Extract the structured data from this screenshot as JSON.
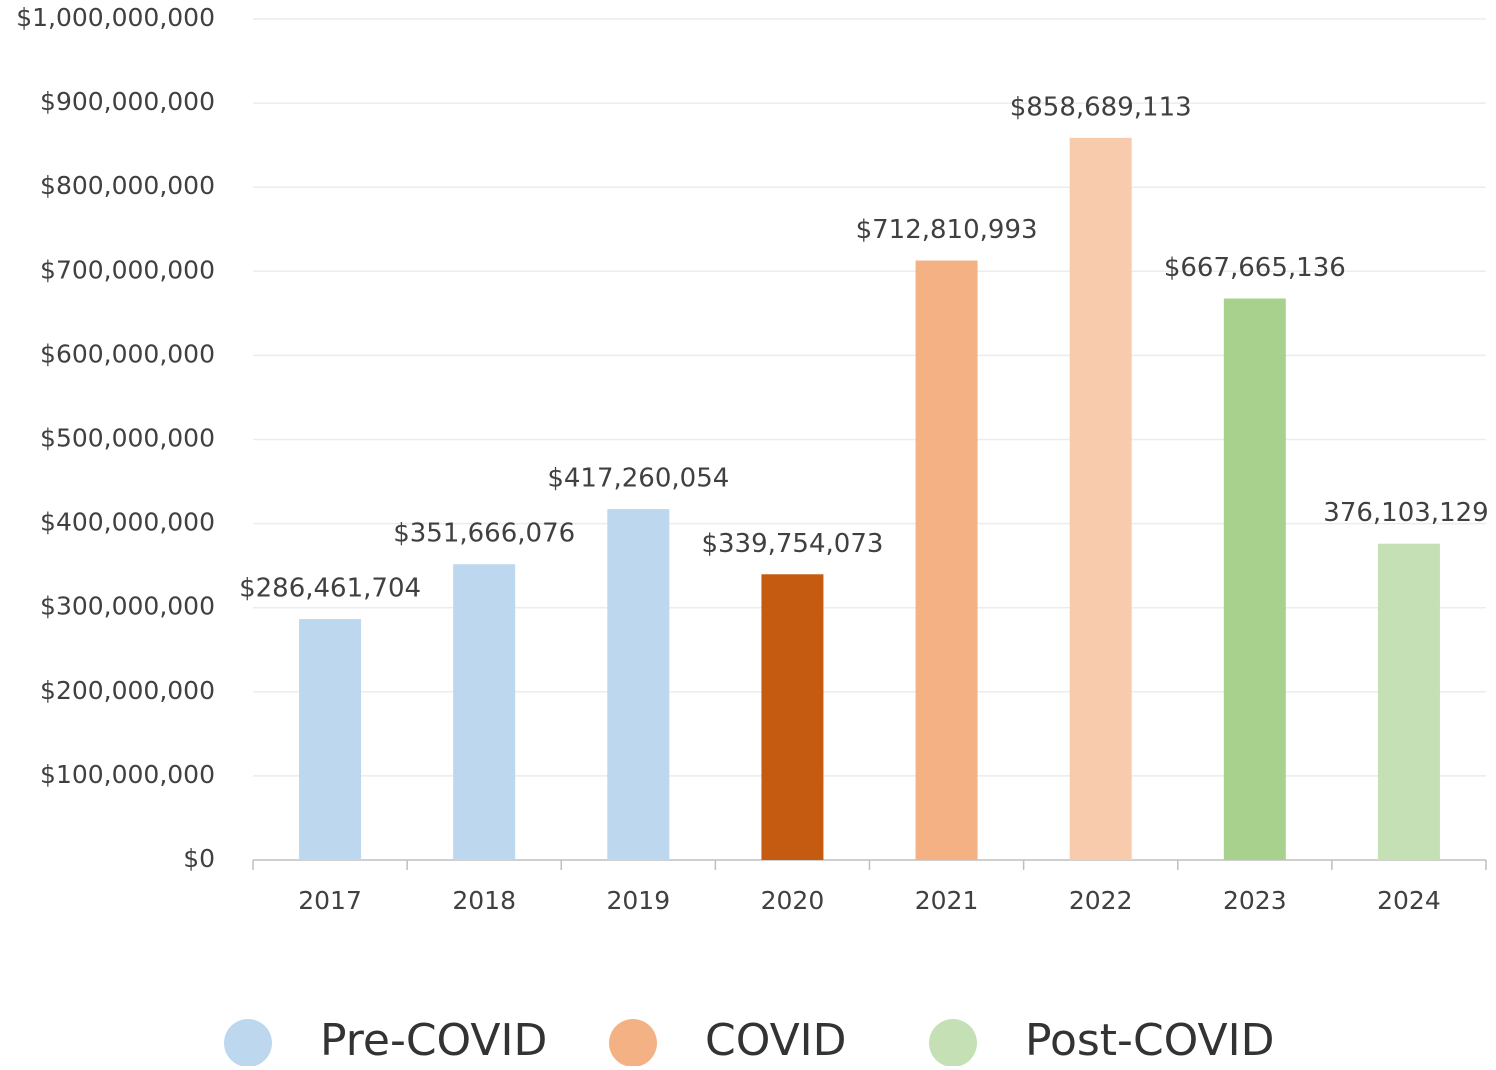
{
  "chart_data": {
    "type": "bar",
    "categories": [
      "2017",
      "2018",
      "2019",
      "2020",
      "2021",
      "2022",
      "2023",
      "2024"
    ],
    "values": [
      286461704,
      351666076,
      417260054,
      339754073,
      712810993,
      858689113,
      667665136,
      376103129
    ],
    "value_labels": [
      "$286,461,704",
      "$351,666,076",
      "$417,260,054",
      "$339,754,073",
      "$712,810,993",
      "$858,689,113",
      "$667,665,136",
      "376,103,129"
    ],
    "colors": [
      "#bdd7ee",
      "#bdd7ee",
      "#bdd7ee",
      "#c55a11",
      "#f4b183",
      "#f8cbad",
      "#a9d18e",
      "#c5e0b4"
    ],
    "ylim": [
      0,
      1000000000
    ],
    "yticks": [
      {
        "value": 0,
        "label": "$0"
      },
      {
        "value": 100000000,
        "label": "$100,000,000"
      },
      {
        "value": 200000000,
        "label": "$200,000,000"
      },
      {
        "value": 300000000,
        "label": "$300,000,000"
      },
      {
        "value": 400000000,
        "label": "$400,000,000"
      },
      {
        "value": 500000000,
        "label": "$500,000,000"
      },
      {
        "value": 600000000,
        "label": "$600,000,000"
      },
      {
        "value": 700000000,
        "label": "$700,000,000"
      },
      {
        "value": 800000000,
        "label": "$800,000,000"
      },
      {
        "value": 900000000,
        "label": "$900,000,000"
      },
      {
        "value": 1000000000,
        "label": "$1,000,000,000"
      }
    ],
    "grid": true,
    "legend": [
      {
        "name": "Pre-COVID",
        "color": "#bdd7ee"
      },
      {
        "name": "COVID",
        "color": "#f4b183"
      },
      {
        "name": "Post-COVID",
        "color": "#c5e0b4"
      }
    ]
  }
}
